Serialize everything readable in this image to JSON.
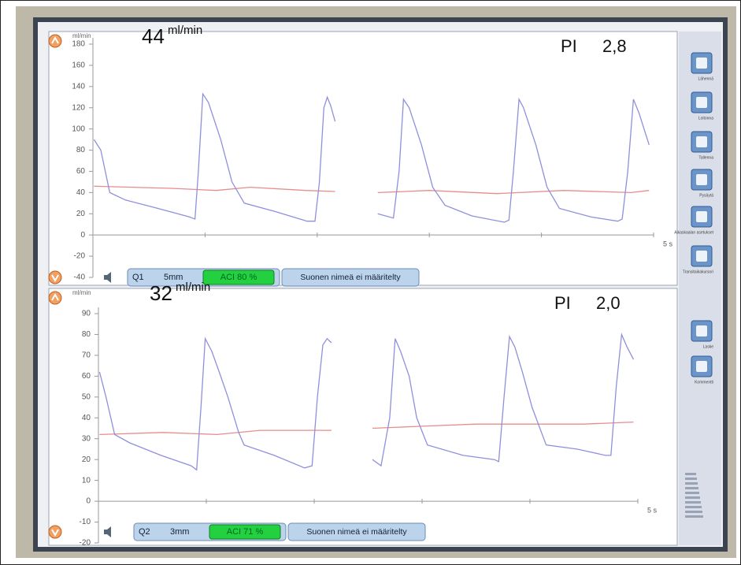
{
  "panels": [
    {
      "unit": "ml/min",
      "ylim": [
        -40,
        180
      ],
      "yticks": [
        180,
        160,
        140,
        120,
        100,
        80,
        60,
        40,
        20,
        0,
        -20,
        -40
      ],
      "xlim": [
        0,
        5
      ],
      "flow": 44,
      "flow_unit": "ml/min",
      "pi_label": "PI",
      "pi": "2,8",
      "time_label": "5 s",
      "probe": "Q1",
      "size": "5mm",
      "aci": "ACI 80 %",
      "vessel": "Suonen nimeä ei määritelty",
      "wave_color": "#8f90dc",
      "mean_color": "#e88c8c",
      "t": [
        0.01,
        0.07,
        0.15,
        0.29,
        0.58,
        0.86,
        0.91,
        0.94,
        0.98,
        1.03,
        1.14,
        1.24,
        1.35,
        1.63,
        1.91,
        1.98,
        2.02,
        2.06,
        2.09,
        2.12,
        2.16,
        null,
        2.54,
        2.68,
        2.73,
        2.77,
        2.82,
        2.93,
        3.03,
        3.14,
        3.38,
        3.67,
        3.71,
        3.75,
        3.8,
        3.84,
        3.95,
        4.05,
        4.16,
        4.44,
        4.68,
        4.72,
        4.77,
        4.82,
        4.87,
        4.96
      ],
      "flow_wave": [
        90,
        80,
        40,
        33,
        25,
        17,
        15,
        60,
        133,
        125,
        90,
        50,
        30,
        22,
        13,
        13,
        50,
        120,
        130,
        122,
        107,
        null,
        20,
        16,
        60,
        128,
        120,
        85,
        45,
        28,
        18,
        12,
        14,
        60,
        128,
        120,
        85,
        45,
        25,
        17,
        13,
        15,
        60,
        128,
        115,
        85
      ],
      "mean_t": [
        0.01,
        0.7,
        1.1,
        1.4,
        1.9,
        2.16,
        null,
        2.54,
        3.0,
        3.6,
        4.2,
        4.8,
        4.96
      ],
      "mean_wave": [
        46,
        44,
        42,
        45,
        42,
        41,
        null,
        40,
        42,
        39,
        42,
        40,
        42
      ]
    },
    {
      "unit": "ml/min",
      "ylim": [
        -20,
        90
      ],
      "yticks": [
        90,
        80,
        70,
        60,
        50,
        40,
        30,
        20,
        10,
        0,
        -10,
        -20
      ],
      "xlim": [
        0,
        5
      ],
      "flow": 32,
      "flow_unit": "ml/min",
      "pi_label": "PI",
      "pi": "2,0",
      "time_label": "5 s",
      "probe": "Q2",
      "size": "3mm",
      "aci": "ACI 71 %",
      "vessel": "Suonen nimeä ei määritelty",
      "wave_color": "#8f90dc",
      "mean_color": "#e88c8c",
      "t": [
        0.01,
        0.07,
        0.15,
        0.29,
        0.58,
        0.86,
        0.91,
        0.95,
        0.99,
        1.05,
        1.12,
        1.2,
        1.3,
        1.35,
        1.63,
        1.91,
        1.98,
        2.03,
        2.08,
        2.12,
        2.16,
        null,
        2.54,
        2.62,
        2.7,
        2.75,
        2.8,
        2.88,
        2.95,
        3.05,
        3.38,
        3.67,
        3.71,
        3.76,
        3.81,
        3.86,
        3.93,
        4.02,
        4.15,
        4.44,
        4.7,
        4.75,
        4.8,
        4.85,
        4.9,
        4.96
      ],
      "flow_wave": [
        62,
        50,
        32,
        28,
        22,
        17,
        15,
        45,
        78,
        72,
        62,
        50,
        33,
        27,
        22,
        16,
        17,
        50,
        75,
        78,
        76,
        null,
        20,
        17,
        40,
        78,
        72,
        60,
        40,
        27,
        22,
        20,
        19,
        50,
        79,
        74,
        62,
        45,
        27,
        25,
        22,
        22,
        55,
        80,
        74,
        68
      ],
      "mean_t": [
        0.01,
        0.6,
        1.1,
        1.5,
        2.16,
        null,
        2.54,
        3.0,
        3.5,
        4.0,
        4.5,
        4.96
      ],
      "mean_wave": [
        32,
        33,
        32,
        34,
        34,
        null,
        35,
        36,
        37,
        37,
        37,
        38
      ]
    }
  ],
  "sidebar": [
    "Lähennä",
    "Loitonna",
    "Tallenna",
    "Pysäytä",
    "Aikaskaalan asetukset",
    "Transitaikakursori",
    "Laske",
    "Kommentti"
  ]
}
